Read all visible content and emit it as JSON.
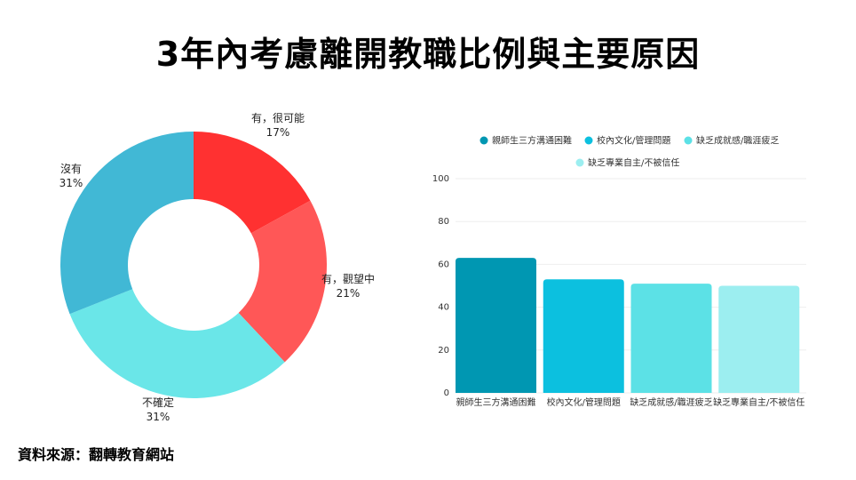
{
  "title": "3年內考慮離開教職比例與主要原因",
  "source": "資料來源：翻轉教育網站",
  "chart_data": [
    {
      "type": "pie",
      "donut": true,
      "slices": [
        {
          "label": "有，很可能",
          "value": 17,
          "display": "17%",
          "color": "#ff3131"
        },
        {
          "label": "有，觀望中",
          "value": 21,
          "display": "21%",
          "color": "#ff5757"
        },
        {
          "label": "不確定",
          "value": 31,
          "display": "31%",
          "color": "#6ae6e8"
        },
        {
          "label": "沒有",
          "value": 31,
          "display": "31%",
          "color": "#41b8d5"
        }
      ]
    },
    {
      "type": "bar",
      "categories": [
        "親師生三方溝通困難",
        "校內文化/管理問題",
        "缺乏成就感/職涯疲乏",
        "缺乏專業自主/不被信任"
      ],
      "values": [
        63,
        53,
        51,
        50
      ],
      "colors": [
        "#0097b2",
        "#0cc0df",
        "#5ce1e6",
        "#9ceef0"
      ],
      "ylim": [
        0,
        100
      ],
      "yticks": [
        0,
        20,
        40,
        60,
        80,
        100
      ],
      "grid": true,
      "legend": "top",
      "legend_entries": [
        "親師生三方溝通困難",
        "校內文化/管理問題",
        "缺乏成就感/職涯疲乏",
        "缺乏專業自主/不被信任"
      ]
    }
  ]
}
